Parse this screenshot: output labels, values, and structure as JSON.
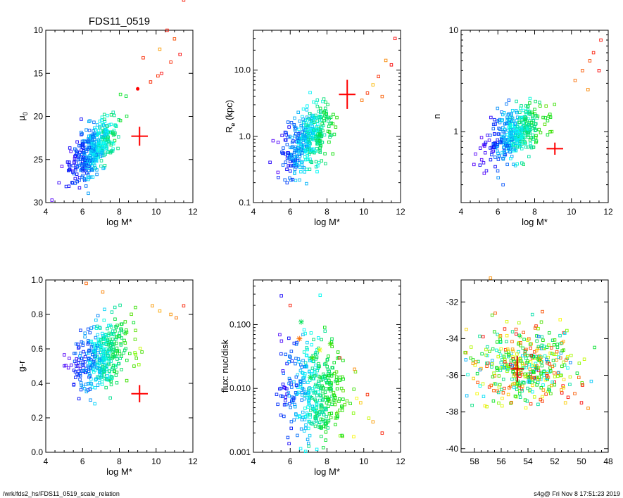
{
  "footer": {
    "left": "/wrk/fds2_hs/FDS11_0519_scale_relation",
    "right": "s4g@  Fri Nov  8 17:51:23 2019"
  },
  "chart_data": [
    {
      "type": "scatter",
      "title": "FDS11_0519",
      "xlabel": "log M*",
      "ylabel": "μ",
      "ylabel_sub": "0",
      "xlim": [
        4,
        12
      ],
      "ylim": [
        30,
        10
      ],
      "xticks": [
        "4",
        "6",
        "8",
        "10",
        "12"
      ],
      "yticks": [
        {
          "v": 10,
          "label": "10"
        },
        {
          "v": 15,
          "label": "15"
        },
        {
          "v": 20,
          "label": "20"
        },
        {
          "v": 25,
          "label": "25"
        },
        {
          "v": 30,
          "label": "30"
        }
      ],
      "yscale": "linear",
      "point_marker": "open-square",
      "color_map": "rainbow",
      "cloud": {
        "center": [
          6.6,
          23.8
        ],
        "spread": [
          0.65,
          1.4
        ],
        "slope": -1.9
      },
      "tail_points": [
        {
          "x": 11.5,
          "y": 6.5
        },
        {
          "x": 10.6,
          "y": 10.0
        },
        {
          "x": 10.2,
          "y": 12.2
        },
        {
          "x": 11.0,
          "y": 11.0
        },
        {
          "x": 10.8,
          "y": 13.7
        },
        {
          "x": 10.3,
          "y": 15.0
        },
        {
          "x": 11.3,
          "y": 12.8
        },
        {
          "x": 9.3,
          "y": 13.2
        },
        {
          "x": 10.1,
          "y": 15.3
        },
        {
          "x": 9.7,
          "y": 16.0
        }
      ],
      "highlight": {
        "x": 9.1,
        "y": 22.3,
        "xerr": 0.45,
        "yerr": 1.1,
        "color": "#ff0000"
      },
      "extra_marker": {
        "x": 9.0,
        "y": 16.8,
        "color": "#ff0000"
      }
    },
    {
      "type": "scatter",
      "title": "",
      "xlabel": "log M*",
      "ylabel": "R",
      "ylabel_sub": "e",
      "ylabel_suffix": " (kpc)",
      "xlim": [
        4,
        12
      ],
      "ylim": [
        0.1,
        40
      ],
      "xticks": [
        "4",
        "6",
        "8",
        "10",
        "12"
      ],
      "yticks": [
        {
          "v": 0.1,
          "label": "0.1"
        },
        {
          "v": 1.0,
          "label": "1.0"
        },
        {
          "v": 10.0,
          "label": "10.0"
        }
      ],
      "yscale": "log",
      "point_marker": "open-square",
      "color_map": "rainbow",
      "cloud": {
        "center": [
          6.9,
          0.85
        ],
        "spread": [
          0.7,
          0.22
        ],
        "slope": 0.2
      },
      "tail_points": [
        {
          "x": 11.7,
          "y": 30
        },
        {
          "x": 11.2,
          "y": 14
        },
        {
          "x": 11.5,
          "y": 12
        },
        {
          "x": 10.8,
          "y": 8
        },
        {
          "x": 10.5,
          "y": 6
        },
        {
          "x": 10.2,
          "y": 4.5
        },
        {
          "x": 9.9,
          "y": 3.5
        },
        {
          "x": 11.0,
          "y": 4.0
        }
      ],
      "highlight": {
        "x": 9.1,
        "y": 4.3,
        "xerr": 0.45,
        "yerr_log": 0.22,
        "color": "#ff0000"
      }
    },
    {
      "type": "scatter",
      "title": "",
      "xlabel": "log M*",
      "ylabel": "n",
      "ylabel_sub": "",
      "xlim": [
        4,
        12
      ],
      "ylim": [
        0.2,
        10
      ],
      "xticks": [
        "4",
        "6",
        "8",
        "10",
        "12"
      ],
      "yticks": [
        {
          "v": 1,
          "label": "1"
        },
        {
          "v": 10,
          "label": "10"
        }
      ],
      "yscale": "log",
      "point_marker": "open-square",
      "color_map": "rainbow",
      "cloud": {
        "center": [
          6.9,
          0.95
        ],
        "spread": [
          0.75,
          0.12
        ],
        "slope": 0.08
      },
      "tail_points": [
        {
          "x": 11.6,
          "y": 8
        },
        {
          "x": 11.2,
          "y": 6
        },
        {
          "x": 11.0,
          "y": 5
        },
        {
          "x": 10.6,
          "y": 4
        },
        {
          "x": 10.2,
          "y": 3.2
        },
        {
          "x": 10.9,
          "y": 2.6
        },
        {
          "x": 11.5,
          "y": 4
        }
      ],
      "highlight": {
        "x": 9.1,
        "y": 0.68,
        "xerr": 0.45,
        "yerr_log": 0.06,
        "color": "#ff0000"
      }
    },
    {
      "type": "scatter",
      "title": "",
      "xlabel": "log M*",
      "ylabel": "g-r",
      "ylabel_sub": "",
      "xlim": [
        4,
        12
      ],
      "ylim": [
        0.0,
        1.0
      ],
      "xticks": [
        "4",
        "6",
        "8",
        "10",
        "12"
      ],
      "yticks": [
        {
          "v": 0.0,
          "label": "0.0"
        },
        {
          "v": 0.2,
          "label": "0.2"
        },
        {
          "v": 0.4,
          "label": "0.4"
        },
        {
          "v": 0.6,
          "label": "0.6"
        },
        {
          "v": 0.8,
          "label": "0.8"
        },
        {
          "v": 1.0,
          "label": "1.0"
        }
      ],
      "yscale": "linear",
      "point_marker": "open-square",
      "color_map": "rainbow",
      "cloud": {
        "center": [
          7.0,
          0.56
        ],
        "spread": [
          0.75,
          0.1
        ],
        "slope": 0.04
      },
      "tail_points": [
        {
          "x": 11.5,
          "y": 0.85
        },
        {
          "x": 10.8,
          "y": 0.8
        },
        {
          "x": 10.2,
          "y": 0.82
        },
        {
          "x": 11.1,
          "y": 0.78
        },
        {
          "x": 9.8,
          "y": 0.85
        },
        {
          "x": 6.2,
          "y": 0.98
        },
        {
          "x": 7.1,
          "y": 0.93
        }
      ],
      "highlight": {
        "x": 9.1,
        "y": 0.34,
        "xerr": 0.45,
        "yerr": 0.05,
        "color": "#ff0000"
      }
    },
    {
      "type": "scatter",
      "title": "",
      "xlabel": "log M*",
      "ylabel": "flux: nuc/disk",
      "ylabel_sub": "",
      "xlim": [
        4,
        12
      ],
      "ylim": [
        0.001,
        0.5
      ],
      "xticks": [
        "4",
        "6",
        "8",
        "10",
        "12"
      ],
      "yticks": [
        {
          "v": 0.001,
          "label": "0.001"
        },
        {
          "v": 0.01,
          "label": "0.010"
        },
        {
          "v": 0.1,
          "label": "0.100"
        }
      ],
      "yscale": "log",
      "point_marker": "open-square",
      "color_map": "rainbow",
      "cloud": {
        "center": [
          7.3,
          0.009
        ],
        "spread": [
          0.9,
          0.42
        ],
        "slope": 0.0
      },
      "tail_points": [
        {
          "x": 10.5,
          "y": 0.003
        },
        {
          "x": 11.0,
          "y": 0.002
        },
        {
          "x": 9.5,
          "y": 0.02
        },
        {
          "x": 10.2,
          "y": 0.008
        },
        {
          "x": 6.0,
          "y": 0.2
        },
        {
          "x": 8.7,
          "y": 0.03
        }
      ],
      "starred_points": [
        {
          "x": 6.6,
          "y": 0.11
        },
        {
          "x": 7.2,
          "y": 0.03
        },
        {
          "x": 7.6,
          "y": 0.04
        },
        {
          "x": 6.5,
          "y": 0.06
        },
        {
          "x": 7.1,
          "y": 0.015
        },
        {
          "x": 8.2,
          "y": 0.05
        }
      ]
    },
    {
      "type": "scatter",
      "title": "",
      "xlabel": "",
      "ylabel": "",
      "ylabel_sub": "",
      "xlim": [
        59,
        48
      ],
      "ylim": [
        -40.2,
        -30.8
      ],
      "xticks": [
        "58",
        "56",
        "54",
        "52",
        "50",
        "48"
      ],
      "xtick_values": [
        58,
        56,
        54,
        52,
        50,
        48
      ],
      "yticks": [
        {
          "v": -40,
          "label": "-40"
        },
        {
          "v": -38,
          "label": "-38"
        },
        {
          "v": -36,
          "label": "-36"
        },
        {
          "v": -34,
          "label": "-34"
        },
        {
          "v": -32,
          "label": "-32"
        }
      ],
      "yscale": "linear",
      "point_marker": "open-square",
      "color_map": "rainbow",
      "cloud": {
        "center": [
          54.3,
          -35.4
        ],
        "spread": [
          1.9,
          1.0
        ],
        "slope": 0.0
      },
      "tail_points": [
        {
          "x": 51.0,
          "y": -37.2
        },
        {
          "x": 50.0,
          "y": -37.5
        },
        {
          "x": 49.5,
          "y": -37.8
        },
        {
          "x": 51.5,
          "y": -36.8
        },
        {
          "x": 50.5,
          "y": -37.0
        },
        {
          "x": 56.8,
          "y": -30.7
        }
      ],
      "highlight": {
        "x": 54.8,
        "y": -35.65,
        "xerr": 0.5,
        "yerr": 0.7,
        "color": "#cc0000"
      }
    }
  ]
}
